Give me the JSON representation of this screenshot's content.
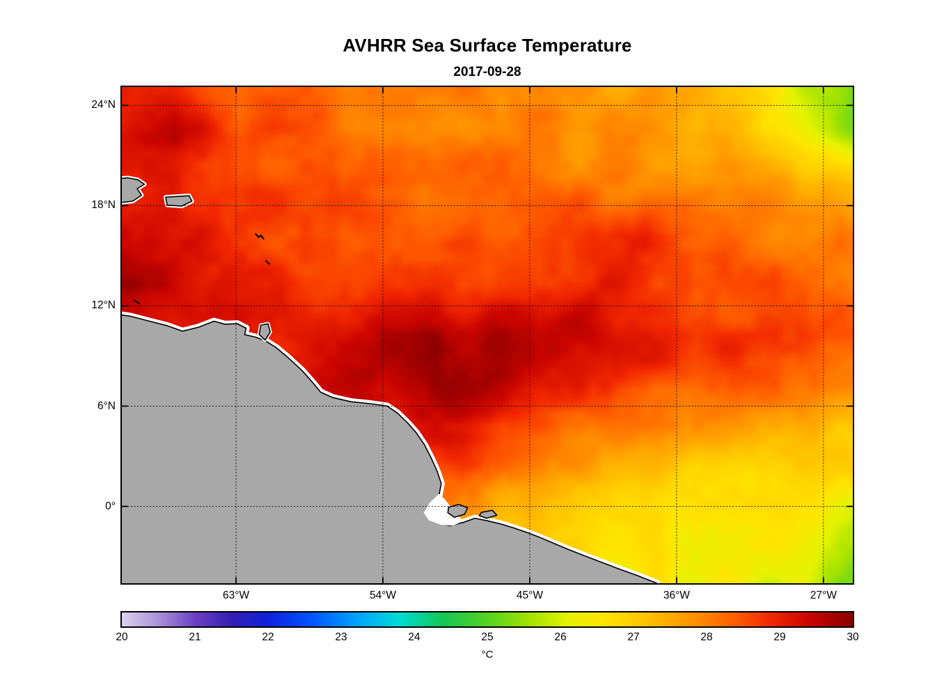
{
  "figure": {
    "title": "AVHRR Sea Surface Temperature",
    "subtitle": "2017-09-28"
  },
  "axes": {
    "yticks": [
      {
        "value": 24,
        "label": "24°N"
      },
      {
        "value": 18,
        "label": "18°N"
      },
      {
        "value": 12,
        "label": "12°N"
      },
      {
        "value": 6,
        "label": "6°N"
      },
      {
        "value": 0,
        "label": "0°"
      }
    ],
    "xticks": [
      {
        "value": -63,
        "label": "63°W"
      },
      {
        "value": -54,
        "label": "54°W"
      },
      {
        "value": -45,
        "label": "45°W"
      },
      {
        "value": -36,
        "label": "36°W"
      },
      {
        "value": -27,
        "label": "27°W"
      }
    ]
  },
  "colorbar": {
    "label": "°C",
    "min": 20,
    "max": 30,
    "tick_labels": [
      "20",
      "21",
      "22",
      "23",
      "24",
      "25",
      "26",
      "27",
      "28",
      "29",
      "30"
    ]
  },
  "chart_data": {
    "type": "heatmap",
    "title": "AVHRR Sea Surface Temperature",
    "date": "2017-09-28",
    "units": "°C",
    "lon_range": [
      -70,
      -25.2
    ],
    "lat_range": [
      -4.6,
      25.1
    ],
    "value_range": [
      20,
      30
    ],
    "land_color": "#a8a8a8",
    "nodata_color": "#ffffff",
    "coastline_color": "#000000",
    "colormap_stops": [
      [
        20.0,
        "#dcd2ee"
      ],
      [
        20.5,
        "#ab92d9"
      ],
      [
        21.0,
        "#6c40c4"
      ],
      [
        21.5,
        "#3420b4"
      ],
      [
        22.0,
        "#1022dc"
      ],
      [
        22.6,
        "#0055ff"
      ],
      [
        23.2,
        "#00a2ff"
      ],
      [
        23.8,
        "#00dcd3"
      ],
      [
        24.4,
        "#16c653"
      ],
      [
        25.0,
        "#55d322"
      ],
      [
        25.6,
        "#a6e300"
      ],
      [
        26.1,
        "#e6f300"
      ],
      [
        26.6,
        "#ffe400"
      ],
      [
        27.2,
        "#ffc100"
      ],
      [
        27.8,
        "#ff9300"
      ],
      [
        28.4,
        "#ff5d00"
      ],
      [
        28.9,
        "#f22700"
      ],
      [
        29.4,
        "#cb0500"
      ],
      [
        30.0,
        "#8a0000"
      ]
    ],
    "grid_lon": [
      -70,
      -66.8,
      -63.6,
      -60.4,
      -57.2,
      -54,
      -50.8,
      -47.6,
      -44.4,
      -41.2,
      -38,
      -34.8,
      -31.6,
      -28.4,
      -25.2
    ],
    "grid_lat": [
      25.1,
      22.1,
      19.2,
      16.2,
      13.2,
      10.3,
      7.3,
      4.3,
      1.4,
      -1.6,
      -4.6
    ],
    "sst": [
      [
        28.8,
        28.9,
        28.5,
        28.3,
        28.2,
        28.1,
        28.0,
        28.0,
        27.9,
        27.8,
        27.6,
        27.4,
        27.1,
        26.0,
        25.1
      ],
      [
        29.3,
        29.5,
        28.8,
        28.4,
        28.3,
        28.2,
        28.1,
        28.1,
        28.0,
        27.9,
        27.8,
        27.6,
        27.3,
        26.6,
        25.6
      ],
      [
        29.1,
        29.2,
        28.8,
        28.6,
        28.5,
        28.4,
        28.3,
        28.2,
        28.2,
        28.1,
        28.0,
        27.9,
        27.8,
        27.5,
        27.2
      ],
      [
        29.6,
        29.4,
        29.0,
        28.7,
        28.6,
        28.5,
        28.5,
        28.4,
        28.4,
        28.7,
        29.0,
        28.4,
        28.2,
        28.1,
        28.0
      ],
      [
        29.8,
        29.5,
        29.1,
        28.9,
        28.8,
        28.8,
        28.8,
        28.7,
        28.8,
        29.1,
        28.9,
        28.6,
        28.5,
        28.4,
        28.3
      ],
      [
        29.2,
        29.1,
        29.0,
        29.0,
        29.2,
        29.5,
        29.7,
        29.6,
        29.5,
        29.3,
        29.1,
        28.9,
        28.8,
        28.7,
        28.5
      ],
      [
        28.9,
        28.9,
        28.9,
        29.0,
        29.3,
        29.6,
        29.8,
        29.6,
        29.2,
        28.9,
        28.7,
        28.5,
        28.3,
        28.1,
        28.0
      ],
      [
        28.6,
        28.6,
        28.6,
        28.7,
        28.9,
        29.2,
        29.4,
        29.0,
        28.4,
        28.0,
        27.7,
        27.5,
        27.3,
        27.2,
        27.1
      ],
      [
        28.4,
        28.4,
        28.3,
        28.3,
        28.3,
        28.4,
        28.2,
        27.8,
        27.4,
        27.1,
        26.9,
        26.8,
        26.7,
        26.6,
        26.5
      ],
      [
        28.1,
        28.1,
        28.0,
        27.9,
        27.8,
        27.7,
        27.5,
        27.2,
        26.9,
        26.7,
        26.6,
        26.5,
        26.4,
        26.3,
        25.9
      ],
      [
        27.9,
        27.9,
        27.8,
        27.6,
        27.4,
        27.2,
        27.1,
        26.9,
        26.7,
        26.6,
        26.5,
        26.4,
        26.3,
        26.1,
        25.2
      ]
    ],
    "land_polygons": {
      "mainland": [
        [
          -0.02,
          0.455
        ],
        [
          0.012,
          0.462
        ],
        [
          0.038,
          0.472
        ],
        [
          0.062,
          0.481
        ],
        [
          0.083,
          0.492
        ],
        [
          0.105,
          0.484
        ],
        [
          0.126,
          0.472
        ],
        [
          0.141,
          0.478
        ],
        [
          0.158,
          0.477
        ],
        [
          0.17,
          0.486
        ],
        [
          0.168,
          0.499
        ],
        [
          0.183,
          0.504
        ],
        [
          0.197,
          0.512
        ],
        [
          0.211,
          0.525
        ],
        [
          0.228,
          0.546
        ],
        [
          0.247,
          0.572
        ],
        [
          0.262,
          0.597
        ],
        [
          0.272,
          0.615
        ],
        [
          0.289,
          0.626
        ],
        [
          0.313,
          0.634
        ],
        [
          0.339,
          0.638
        ],
        [
          0.363,
          0.643
        ],
        [
          0.377,
          0.657
        ],
        [
          0.391,
          0.677
        ],
        [
          0.403,
          0.697
        ],
        [
          0.414,
          0.721
        ],
        [
          0.423,
          0.747
        ],
        [
          0.431,
          0.773
        ],
        [
          0.437,
          0.799
        ],
        [
          0.434,
          0.822
        ],
        [
          0.427,
          0.843
        ],
        [
          0.421,
          0.863
        ],
        [
          0.431,
          0.878
        ],
        [
          0.449,
          0.884
        ],
        [
          0.468,
          0.877
        ],
        [
          0.483,
          0.869
        ],
        [
          0.5,
          0.874
        ],
        [
          0.517,
          0.88
        ],
        [
          0.535,
          0.888
        ],
        [
          0.553,
          0.897
        ],
        [
          0.571,
          0.907
        ],
        [
          0.59,
          0.919
        ],
        [
          0.611,
          0.932
        ],
        [
          0.632,
          0.944
        ],
        [
          0.655,
          0.957
        ],
        [
          0.68,
          0.971
        ],
        [
          0.706,
          0.985
        ],
        [
          0.732,
          1.0
        ],
        [
          0.732,
          1.03
        ],
        [
          -0.02,
          1.03
        ]
      ],
      "amazon_estuary": [
        [
          0.434,
          0.82
        ],
        [
          0.421,
          0.838
        ],
        [
          0.413,
          0.858
        ],
        [
          0.42,
          0.873
        ],
        [
          0.436,
          0.882
        ],
        [
          0.453,
          0.884
        ],
        [
          0.467,
          0.875
        ],
        [
          0.459,
          0.861
        ],
        [
          0.45,
          0.846
        ],
        [
          0.442,
          0.831
        ]
      ],
      "marajo": [
        [
          0.447,
          0.847
        ],
        [
          0.461,
          0.841
        ],
        [
          0.473,
          0.848
        ],
        [
          0.469,
          0.861
        ],
        [
          0.455,
          0.867
        ],
        [
          0.446,
          0.858
        ]
      ],
      "ilha2": [
        [
          0.492,
          0.857
        ],
        [
          0.507,
          0.853
        ],
        [
          0.513,
          0.863
        ],
        [
          0.499,
          0.869
        ],
        [
          0.489,
          0.864
        ]
      ],
      "hispaniola": [
        [
          -0.02,
          0.187
        ],
        [
          0.008,
          0.183
        ],
        [
          0.022,
          0.187
        ],
        [
          0.031,
          0.196
        ],
        [
          0.021,
          0.205
        ],
        [
          0.027,
          0.218
        ],
        [
          0.015,
          0.23
        ],
        [
          -0.02,
          0.236
        ]
      ],
      "puerto_rico": [
        [
          0.06,
          0.222
        ],
        [
          0.092,
          0.219
        ],
        [
          0.096,
          0.23
        ],
        [
          0.082,
          0.24
        ],
        [
          0.062,
          0.238
        ]
      ],
      "trinidad": [
        [
          0.19,
          0.48
        ],
        [
          0.2,
          0.477
        ],
        [
          0.203,
          0.494
        ],
        [
          0.196,
          0.51
        ],
        [
          0.188,
          0.499
        ]
      ]
    },
    "islets": [
      [
        [
          0.183,
          0.296
        ],
        [
          0.187,
          0.303
        ],
        [
          0.19,
          0.299
        ],
        [
          0.194,
          0.306
        ]
      ],
      [
        [
          0.197,
          0.35
        ],
        [
          0.202,
          0.357
        ]
      ],
      [
        [
          0.017,
          0.43
        ],
        [
          0.024,
          0.437
        ]
      ]
    ]
  }
}
